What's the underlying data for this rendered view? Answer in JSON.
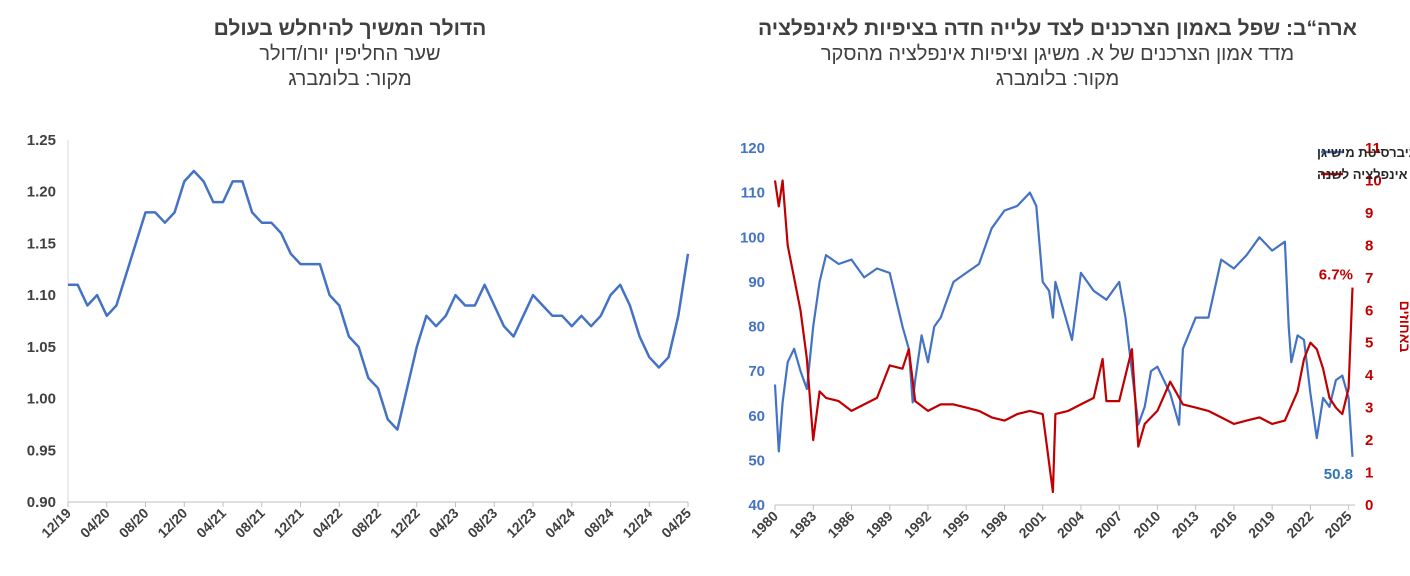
{
  "left": {
    "title": "הדולר המשיך להיחלש בעולם",
    "subtitle": "שער החליפין יורו/דולר",
    "source": "מקור: בלומברג",
    "colors": {
      "line": "#4472C4",
      "axis": "#404040"
    }
  },
  "right": {
    "title_prefix": "ארה“ב:",
    "title": "שפל באמון הצרכנים לצד עלייה חדה בציפיות לאינפלציה",
    "subtitle": "מדד אמון הצרכנים של א. משיגן וציפיות אינפלציה מהסקר",
    "source": "מקור: בלומברג",
    "colors": {
      "sentiment": "#4472C4",
      "inflation": "#C00000",
      "axis": "#404040"
    }
  },
  "chart_data": [
    {
      "type": "line",
      "xlabel": "",
      "ylabel": "",
      "ylim": [
        0.9,
        1.25
      ],
      "y_ticks": [
        "1.25",
        "1.20",
        "1.15",
        "1.10",
        "1.05",
        "1.00",
        "0.95",
        "0.90"
      ],
      "x_tick_labels": [
        "12/19",
        "04/20",
        "08/20",
        "12/20",
        "04/21",
        "08/21",
        "12/21",
        "04/22",
        "08/22",
        "12/22",
        "04/23",
        "08/23",
        "12/23",
        "04/24",
        "08/24",
        "12/24",
        "04/25"
      ],
      "series": [
        {
          "x": [
            "12/19",
            "01/20",
            "02/20",
            "03/20",
            "04/20",
            "05/20",
            "06/20",
            "07/20",
            "08/20",
            "09/20",
            "10/20",
            "11/20",
            "12/20",
            "01/21",
            "02/21",
            "03/21",
            "04/21",
            "05/21",
            "06/21",
            "07/21",
            "08/21",
            "09/21",
            "10/21",
            "11/21",
            "12/21",
            "01/22",
            "02/22",
            "03/22",
            "04/22",
            "05/22",
            "06/22",
            "07/22",
            "08/22",
            "09/22",
            "10/22",
            "11/22",
            "12/22",
            "01/23",
            "02/23",
            "03/23",
            "04/23",
            "05/23",
            "06/23",
            "07/23",
            "08/23",
            "09/23",
            "10/23",
            "11/23",
            "12/23",
            "01/24",
            "02/24",
            "03/24",
            "04/24",
            "05/24",
            "06/24",
            "07/24",
            "08/24",
            "09/24",
            "10/24",
            "11/24",
            "12/24",
            "01/25",
            "02/25",
            "03/25",
            "04/25"
          ],
          "values": [
            1.11,
            1.11,
            1.09,
            1.1,
            1.08,
            1.09,
            1.12,
            1.15,
            1.18,
            1.18,
            1.17,
            1.18,
            1.21,
            1.22,
            1.21,
            1.19,
            1.19,
            1.21,
            1.21,
            1.18,
            1.17,
            1.17,
            1.16,
            1.14,
            1.13,
            1.13,
            1.13,
            1.1,
            1.09,
            1.06,
            1.05,
            1.02,
            1.01,
            0.98,
            0.97,
            1.01,
            1.05,
            1.08,
            1.07,
            1.08,
            1.1,
            1.09,
            1.09,
            1.11,
            1.09,
            1.07,
            1.06,
            1.08,
            1.1,
            1.09,
            1.08,
            1.08,
            1.07,
            1.08,
            1.07,
            1.08,
            1.1,
            1.11,
            1.09,
            1.06,
            1.04,
            1.03,
            1.04,
            1.08,
            1.14
          ]
        }
      ]
    },
    {
      "type": "line",
      "xlabel": "",
      "ylabel": "",
      "y2label": "באחוזים",
      "ylim": [
        40,
        120
      ],
      "y2lim": [
        0,
        11
      ],
      "y_ticks": [
        "120",
        "110",
        "100",
        "90",
        "80",
        "70",
        "60",
        "50",
        "40"
      ],
      "y2_ticks": [
        "11",
        "10",
        "9",
        "8",
        "7",
        "6",
        "5",
        "4",
        "3",
        "2",
        "1",
        "0"
      ],
      "x_tick_labels": [
        "1980",
        "1983",
        "1986",
        "1989",
        "1992",
        "1995",
        "1998",
        "2001",
        "2004",
        "2007",
        "2010",
        "2013",
        "2016",
        "2019",
        "2022",
        "2025"
      ],
      "legend_position": "top-right",
      "annotations": [
        "6.7%",
        "50.8"
      ],
      "series": [
        {
          "name": "מדד אמון הצרכנים של אוניברסיטת מישיגן",
          "axis": "left",
          "x": [
            1980,
            1980.3,
            1980.6,
            1981,
            1981.5,
            1982,
            1982.5,
            1983,
            1983.5,
            1984,
            1985,
            1986,
            1987,
            1988,
            1989,
            1990,
            1990.5,
            1990.8,
            1991,
            1991.5,
            1992,
            1992.5,
            1993,
            1994,
            1995,
            1996,
            1997,
            1998,
            1999,
            2000,
            2000.5,
            2001,
            2001.5,
            2001.8,
            2002,
            2003,
            2003.3,
            2004,
            2005,
            2006,
            2007,
            2007.5,
            2008,
            2008.5,
            2009,
            2009.5,
            2010,
            2011,
            2011.7,
            2012,
            2013,
            2014,
            2015,
            2016,
            2017,
            2018,
            2019,
            2020,
            2020.3,
            2020.5,
            2021,
            2021.5,
            2022,
            2022.5,
            2023,
            2023.5,
            2024,
            2024.5,
            2025,
            2025.3
          ],
          "values": [
            67,
            52,
            63,
            72,
            75,
            70,
            66,
            80,
            90,
            96,
            94,
            95,
            91,
            93,
            92,
            80,
            75,
            63,
            68,
            78,
            72,
            80,
            82,
            90,
            92,
            94,
            102,
            106,
            107,
            110,
            107,
            90,
            88,
            82,
            90,
            80,
            77,
            92,
            88,
            86,
            90,
            82,
            70,
            58,
            62,
            70,
            71,
            65,
            58,
            75,
            82,
            82,
            95,
            93,
            96,
            100,
            97,
            99,
            80,
            72,
            78,
            77,
            65,
            55,
            64,
            62,
            68,
            69,
            64,
            50.8
          ]
        },
        {
          "name": "ציפיות אינפלציה לשנה",
          "axis": "right",
          "x": [
            1980,
            1980.3,
            1980.6,
            1981,
            1981.5,
            1982,
            1982.5,
            1983,
            1983.5,
            1984,
            1985,
            1986,
            1987,
            1988,
            1989,
            1990,
            1990.5,
            1991,
            1992,
            1993,
            1994,
            1995,
            1996,
            1997,
            1998,
            1999,
            2000,
            2001,
            2001.8,
            2002,
            2003,
            2004,
            2005,
            2005.7,
            2006,
            2007,
            2008,
            2008.5,
            2009,
            2010,
            2011,
            2012,
            2013,
            2014,
            2015,
            2016,
            2017,
            2018,
            2019,
            2020,
            2021,
            2021.5,
            2022,
            2022.5,
            2023,
            2023.5,
            2024,
            2024.5,
            2025,
            2025.3
          ],
          "values": [
            10,
            9.2,
            10,
            8,
            7,
            6,
            4.5,
            2,
            3.5,
            3.3,
            3.2,
            2.9,
            3.1,
            3.3,
            4.3,
            4.2,
            4.8,
            3.2,
            2.9,
            3.1,
            3.1,
            3.0,
            2.9,
            2.7,
            2.6,
            2.8,
            2.9,
            2.8,
            0.4,
            2.8,
            2.9,
            3.1,
            3.3,
            4.5,
            3.2,
            3.2,
            4.8,
            1.8,
            2.5,
            2.9,
            3.8,
            3.1,
            3.0,
            2.9,
            2.7,
            2.5,
            2.6,
            2.7,
            2.5,
            2.6,
            3.5,
            4.5,
            5.0,
            4.8,
            4.2,
            3.3,
            3.0,
            2.8,
            3.6,
            6.7
          ]
        }
      ]
    }
  ]
}
